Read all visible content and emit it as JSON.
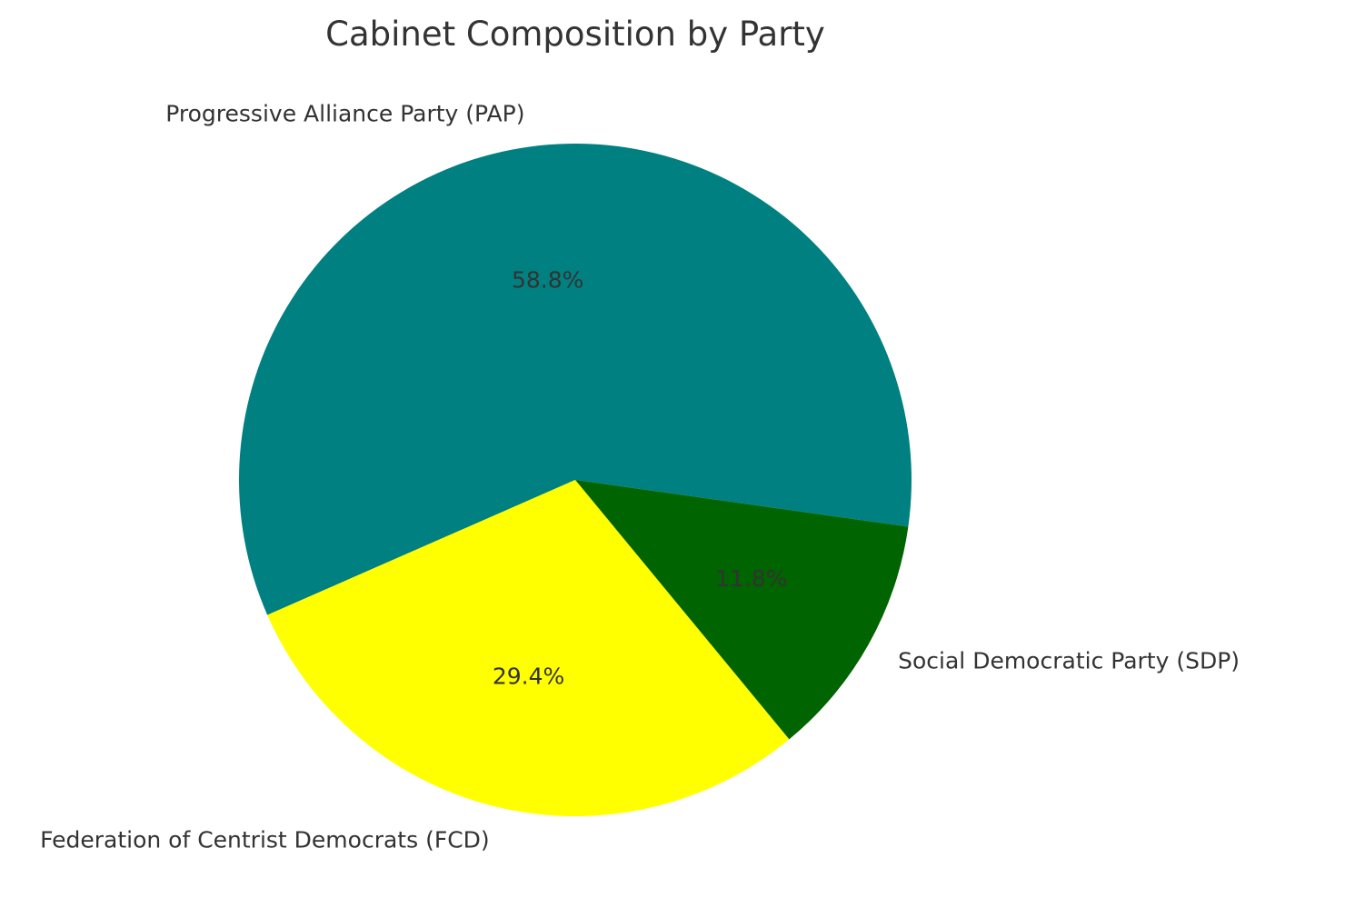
{
  "chart_data": {
    "type": "pie",
    "title": "Cabinet Composition by Party",
    "slices": [
      {
        "label": "Progressive Alliance Party (PAP)",
        "value": 58.8,
        "pct_label": "58.8%",
        "color": "#008080"
      },
      {
        "label": "Federation of Centrist Democrats (FCD)",
        "value": 29.4,
        "pct_label": "29.4%",
        "color": "#FFFF00"
      },
      {
        "label": "Social Democratic Party (SDP)",
        "value": 11.8,
        "pct_label": "11.8%",
        "color": "#006400"
      }
    ],
    "legend": "none"
  }
}
